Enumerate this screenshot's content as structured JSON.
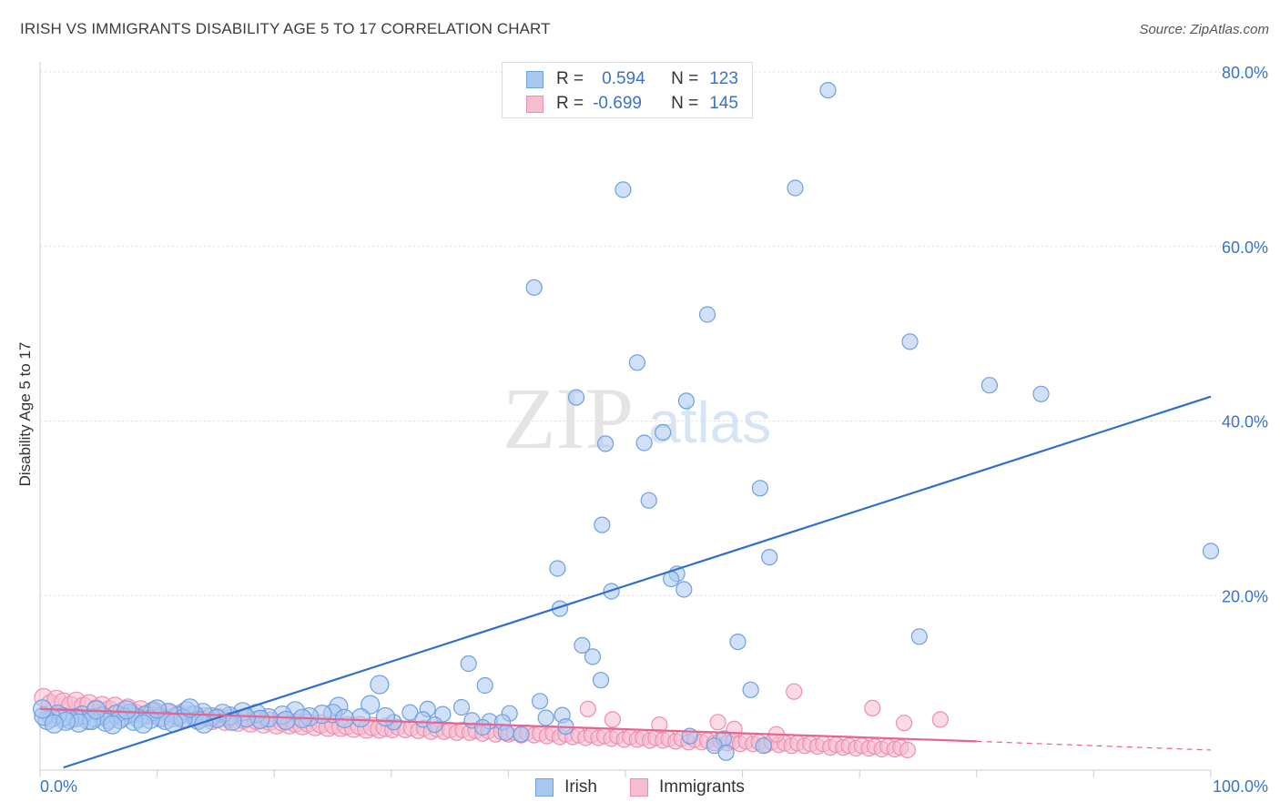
{
  "title": "IRISH VS IMMIGRANTS DISABILITY AGE 5 TO 17 CORRELATION CHART",
  "source": "Source: ZipAtlas.com",
  "watermark": {
    "zip": "ZIP",
    "atlas": "atlas"
  },
  "legend_top": {
    "rows": [
      {
        "r_label": "R =",
        "r_value": "0.594",
        "n_label": "N =",
        "n_value": "123"
      },
      {
        "r_label": "R =",
        "r_value": "-0.699",
        "n_label": "N =",
        "n_value": "145"
      }
    ]
  },
  "legend_bottom": {
    "irish": "Irish",
    "immigrants": "Immigrants"
  },
  "colors": {
    "irish_fill": "#a9c8f0",
    "irish_stroke": "#6f9fe0",
    "irish_line": "#2f6fce",
    "imm_fill": "#f6bcd0",
    "imm_stroke": "#ef8fb0",
    "imm_line": "#e8638e",
    "tick_text": "#3a73c9",
    "grid": "#dddddd"
  },
  "chart_data": {
    "type": "scatter",
    "title": "IRISH VS IMMIGRANTS DISABILITY AGE 5 TO 17 CORRELATION CHART",
    "xlabel": "",
    "ylabel": "Disability Age 5 to 17",
    "xlim": [
      0,
      100
    ],
    "ylim": [
      0,
      80
    ],
    "x_tick_labels": [
      "0.0%",
      "100.0%"
    ],
    "y_ticks": [
      20,
      40,
      60,
      80
    ],
    "y_tick_labels": [
      "20.0%",
      "40.0%",
      "60.0%",
      "80.0%"
    ],
    "grid": true,
    "legend": "top-center",
    "series": [
      {
        "name": "Irish",
        "R": 0.594,
        "N": 123,
        "trend": [
          [
            2,
            0.3
          ],
          [
            100,
            42.8
          ]
        ],
        "points": [
          [
            67.3,
            77.9
          ],
          [
            49.8,
            66.5
          ],
          [
            64.5,
            66.7
          ],
          [
            42.2,
            55.3
          ],
          [
            57.0,
            52.2
          ],
          [
            74.3,
            49.1
          ],
          [
            51.0,
            46.7
          ],
          [
            81.1,
            44.1
          ],
          [
            45.8,
            42.7
          ],
          [
            55.2,
            42.3
          ],
          [
            85.5,
            43.1
          ],
          [
            53.2,
            38.7
          ],
          [
            48.3,
            37.4
          ],
          [
            51.6,
            37.5
          ],
          [
            52.0,
            30.9
          ],
          [
            61.5,
            32.3
          ],
          [
            48.0,
            28.1
          ],
          [
            62.3,
            24.4
          ],
          [
            100.0,
            25.1
          ],
          [
            44.2,
            23.1
          ],
          [
            54.4,
            22.5
          ],
          [
            53.9,
            21.9
          ],
          [
            48.8,
            20.5
          ],
          [
            55.0,
            20.7
          ],
          [
            44.4,
            18.5
          ],
          [
            75.1,
            15.3
          ],
          [
            46.3,
            14.3
          ],
          [
            59.6,
            14.7
          ],
          [
            47.2,
            13.0
          ],
          [
            36.6,
            12.2
          ],
          [
            47.9,
            10.3
          ],
          [
            29.0,
            9.8
          ],
          [
            38.0,
            9.7
          ],
          [
            60.7,
            9.2
          ],
          [
            42.7,
            7.9
          ],
          [
            28.2,
            7.5
          ],
          [
            36.0,
            7.2
          ],
          [
            33.1,
            7.0
          ],
          [
            25.5,
            7.3
          ],
          [
            25.0,
            6.5
          ],
          [
            31.6,
            6.6
          ],
          [
            34.4,
            6.4
          ],
          [
            40.1,
            6.5
          ],
          [
            44.6,
            6.3
          ],
          [
            43.2,
            6.0
          ],
          [
            32.7,
            5.8
          ],
          [
            36.9,
            5.7
          ],
          [
            38.4,
            5.6
          ],
          [
            39.5,
            5.5
          ],
          [
            33.7,
            5.2
          ],
          [
            37.8,
            4.9
          ],
          [
            44.9,
            5.0
          ],
          [
            39.8,
            4.3
          ],
          [
            41.1,
            4.1
          ],
          [
            55.5,
            3.9
          ],
          [
            58.4,
            3.6
          ],
          [
            57.6,
            2.8
          ],
          [
            58.6,
            2.0
          ],
          [
            61.8,
            2.8
          ],
          [
            30.2,
            5.5
          ],
          [
            29.5,
            6.1
          ],
          [
            27.4,
            6.0
          ],
          [
            26.0,
            5.9
          ],
          [
            24.1,
            6.4
          ],
          [
            23.0,
            6.1
          ],
          [
            21.8,
            6.8
          ],
          [
            20.7,
            6.3
          ],
          [
            19.5,
            6.0
          ],
          [
            18.5,
            6.5
          ],
          [
            17.3,
            6.7
          ],
          [
            16.2,
            6.2
          ],
          [
            15.6,
            6.5
          ],
          [
            14.6,
            6.1
          ],
          [
            13.9,
            6.6
          ],
          [
            13.2,
            6.3
          ],
          [
            12.5,
            6.8
          ],
          [
            11.8,
            6.2
          ],
          [
            11.0,
            6.6
          ],
          [
            10.3,
            6.0
          ],
          [
            9.6,
            6.7
          ],
          [
            9.0,
            6.3
          ],
          [
            8.4,
            5.9
          ],
          [
            7.7,
            6.5
          ],
          [
            7.1,
            6.1
          ],
          [
            6.5,
            6.4
          ],
          [
            5.9,
            5.8
          ],
          [
            5.3,
            6.2
          ],
          [
            4.7,
            6.0
          ],
          [
            4.1,
            5.7
          ],
          [
            3.6,
            6.3
          ],
          [
            3.0,
            6.0
          ],
          [
            2.5,
            5.8
          ],
          [
            2.0,
            6.1
          ],
          [
            1.5,
            6.4
          ],
          [
            1.0,
            6.0
          ],
          [
            0.6,
            5.7
          ],
          [
            0.3,
            6.2
          ],
          [
            0.2,
            7.0
          ],
          [
            22.4,
            5.9
          ],
          [
            21.0,
            5.7
          ],
          [
            18.8,
            5.8
          ],
          [
            17.6,
            6.0
          ],
          [
            16.4,
            5.6
          ],
          [
            15.1,
            5.9
          ],
          [
            13.5,
            5.7
          ],
          [
            12.2,
            5.9
          ],
          [
            10.7,
            5.7
          ],
          [
            9.4,
            5.8
          ],
          [
            8.0,
            5.6
          ],
          [
            6.8,
            5.8
          ],
          [
            5.6,
            5.5
          ],
          [
            4.4,
            5.7
          ],
          [
            3.3,
            5.4
          ],
          [
            2.2,
            5.6
          ],
          [
            1.2,
            5.3
          ],
          [
            14.0,
            5.3
          ],
          [
            11.4,
            5.4
          ],
          [
            8.8,
            5.3
          ],
          [
            6.2,
            5.2
          ],
          [
            4.8,
            6.9
          ],
          [
            7.4,
            6.9
          ],
          [
            10.0,
            7.0
          ],
          [
            12.8,
            7.1
          ]
        ]
      },
      {
        "name": "Immigrants",
        "R": -0.699,
        "N": 145,
        "trend": [
          [
            0,
            7.0
          ],
          [
            80,
            3.3
          ]
        ],
        "trend_dashed": [
          [
            80,
            3.3
          ],
          [
            100,
            2.3
          ]
        ],
        "points": [
          [
            0.3,
            8.3
          ],
          [
            0.9,
            7.6
          ],
          [
            1.4,
            8.1
          ],
          [
            2.0,
            7.8
          ],
          [
            2.6,
            7.4
          ],
          [
            3.1,
            7.9
          ],
          [
            3.7,
            7.3
          ],
          [
            4.2,
            7.6
          ],
          [
            4.8,
            7.0
          ],
          [
            5.3,
            7.4
          ],
          [
            5.9,
            6.9
          ],
          [
            6.4,
            7.3
          ],
          [
            7.0,
            6.7
          ],
          [
            7.5,
            7.1
          ],
          [
            8.1,
            6.5
          ],
          [
            8.6,
            6.9
          ],
          [
            9.2,
            6.4
          ],
          [
            9.7,
            6.8
          ],
          [
            10.3,
            6.2
          ],
          [
            10.8,
            6.6
          ],
          [
            11.4,
            6.0
          ],
          [
            11.9,
            6.4
          ],
          [
            12.5,
            5.9
          ],
          [
            13.0,
            6.3
          ],
          [
            13.6,
            5.8
          ],
          [
            14.1,
            6.1
          ],
          [
            14.7,
            5.7
          ],
          [
            15.2,
            6.0
          ],
          [
            15.8,
            5.6
          ],
          [
            16.3,
            5.9
          ],
          [
            16.9,
            5.5
          ],
          [
            17.4,
            5.8
          ],
          [
            18.0,
            5.4
          ],
          [
            18.5,
            5.7
          ],
          [
            19.1,
            5.3
          ],
          [
            19.6,
            5.6
          ],
          [
            20.2,
            5.2
          ],
          [
            20.7,
            5.5
          ],
          [
            21.3,
            5.2
          ],
          [
            21.8,
            5.4
          ],
          [
            22.4,
            5.1
          ],
          [
            22.9,
            5.4
          ],
          [
            23.5,
            5.0
          ],
          [
            24.0,
            5.3
          ],
          [
            24.6,
            4.9
          ],
          [
            25.1,
            5.2
          ],
          [
            25.7,
            4.9
          ],
          [
            26.2,
            5.1
          ],
          [
            26.8,
            4.8
          ],
          [
            27.3,
            5.1
          ],
          [
            27.9,
            4.7
          ],
          [
            28.4,
            5.0
          ],
          [
            29.0,
            4.7
          ],
          [
            29.5,
            4.9
          ],
          [
            30.1,
            4.6
          ],
          [
            30.6,
            4.9
          ],
          [
            31.2,
            4.6
          ],
          [
            31.7,
            4.8
          ],
          [
            32.3,
            4.5
          ],
          [
            32.8,
            4.8
          ],
          [
            33.4,
            4.4
          ],
          [
            33.9,
            4.7
          ],
          [
            34.5,
            4.4
          ],
          [
            35.0,
            4.6
          ],
          [
            35.6,
            4.3
          ],
          [
            36.1,
            4.6
          ],
          [
            36.7,
            4.3
          ],
          [
            37.2,
            4.5
          ],
          [
            37.8,
            4.2
          ],
          [
            38.3,
            4.5
          ],
          [
            38.9,
            4.1
          ],
          [
            39.4,
            4.4
          ],
          [
            40.0,
            4.1
          ],
          [
            40.5,
            4.3
          ],
          [
            41.1,
            4.0
          ],
          [
            41.6,
            4.3
          ],
          [
            42.2,
            4.0
          ],
          [
            42.7,
            4.2
          ],
          [
            43.3,
            3.9
          ],
          [
            43.8,
            4.2
          ],
          [
            44.4,
            3.8
          ],
          [
            44.9,
            4.1
          ],
          [
            45.5,
            3.8
          ],
          [
            46.0,
            4.0
          ],
          [
            46.6,
            3.7
          ],
          [
            47.1,
            4.0
          ],
          [
            47.7,
            3.7
          ],
          [
            48.2,
            3.9
          ],
          [
            48.8,
            3.6
          ],
          [
            49.3,
            3.9
          ],
          [
            49.9,
            3.5
          ],
          [
            50.4,
            3.8
          ],
          [
            51.0,
            3.5
          ],
          [
            51.5,
            3.7
          ],
          [
            52.1,
            3.4
          ],
          [
            52.6,
            3.7
          ],
          [
            53.2,
            3.4
          ],
          [
            53.7,
            3.6
          ],
          [
            54.3,
            3.3
          ],
          [
            54.8,
            3.6
          ],
          [
            55.4,
            3.2
          ],
          [
            55.9,
            3.5
          ],
          [
            56.5,
            3.2
          ],
          [
            57.0,
            3.4
          ],
          [
            57.6,
            3.1
          ],
          [
            58.1,
            3.4
          ],
          [
            58.7,
            3.1
          ],
          [
            59.2,
            3.3
          ],
          [
            59.8,
            3.0
          ],
          [
            60.3,
            3.3
          ],
          [
            60.9,
            3.0
          ],
          [
            61.4,
            3.2
          ],
          [
            62.0,
            2.9
          ],
          [
            62.5,
            3.2
          ],
          [
            63.1,
            2.9
          ],
          [
            63.6,
            3.1
          ],
          [
            64.2,
            2.8
          ],
          [
            64.7,
            3.1
          ],
          [
            65.3,
            2.8
          ],
          [
            65.8,
            3.0
          ],
          [
            66.4,
            2.7
          ],
          [
            66.9,
            3.0
          ],
          [
            67.5,
            2.6
          ],
          [
            68.0,
            2.9
          ],
          [
            68.6,
            2.6
          ],
          [
            69.1,
            2.8
          ],
          [
            69.7,
            2.5
          ],
          [
            70.2,
            2.8
          ],
          [
            70.8,
            2.5
          ],
          [
            71.3,
            2.7
          ],
          [
            71.9,
            2.4
          ],
          [
            72.4,
            2.7
          ],
          [
            73.0,
            2.4
          ],
          [
            73.5,
            2.6
          ],
          [
            74.1,
            2.3
          ],
          [
            46.8,
            7.0
          ],
          [
            57.9,
            5.5
          ],
          [
            64.4,
            9.0
          ],
          [
            71.1,
            7.1
          ],
          [
            76.9,
            5.8
          ],
          [
            73.8,
            5.4
          ],
          [
            48.9,
            5.8
          ],
          [
            52.9,
            5.2
          ],
          [
            59.3,
            4.7
          ],
          [
            62.9,
            4.1
          ]
        ]
      }
    ]
  }
}
